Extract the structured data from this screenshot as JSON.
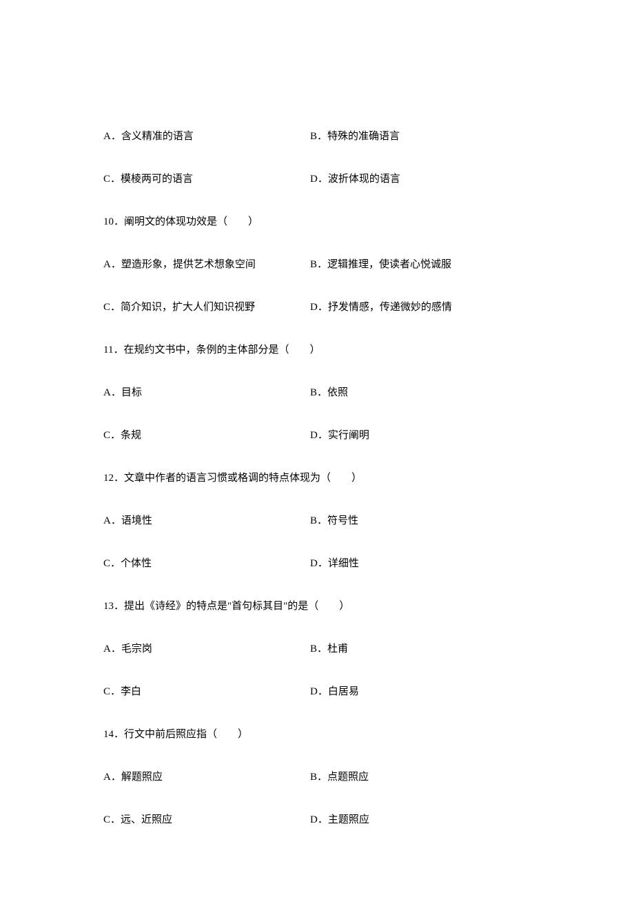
{
  "q9_options": {
    "a": "A．含义精准的语言",
    "b": "B．特殊的准确语言",
    "c": "C．模棱两可的语言",
    "d": "D．波折体现的语言"
  },
  "q10": {
    "stem": "10．阐明文的体现功效是（　　）",
    "a": "A．塑造形象，提供艺术想象空间",
    "b": "B．逻辑推理，使读者心悦诚服",
    "c": "C．简介知识，扩大人们知识视野",
    "d": "D．抒发情感，传递微妙的感情"
  },
  "q11": {
    "stem": "11．在规约文书中，条例的主体部分是（　　）",
    "a": "A．目标",
    "b": "B．依照",
    "c": "C．条规",
    "d": "D．实行阐明"
  },
  "q12": {
    "stem": "12．文章中作者的语言习惯或格调的特点体现为（　　）",
    "a": "A．语境性",
    "b": "B．符号性",
    "c": "C．个体性",
    "d": "D．详细性"
  },
  "q13": {
    "stem": "13．提出《诗经》的特点是\"首句标其目\"的是（　　）",
    "a": "A．毛宗岗",
    "b": "B．杜甫",
    "c": "C．李白",
    "d": "D．白居易"
  },
  "q14": {
    "stem": "14．行文中前后照应指（　　）",
    "a": "A．解题照应",
    "b": "B．点题照应",
    "c": "C．远、近照应",
    "d": "D．主题照应"
  }
}
